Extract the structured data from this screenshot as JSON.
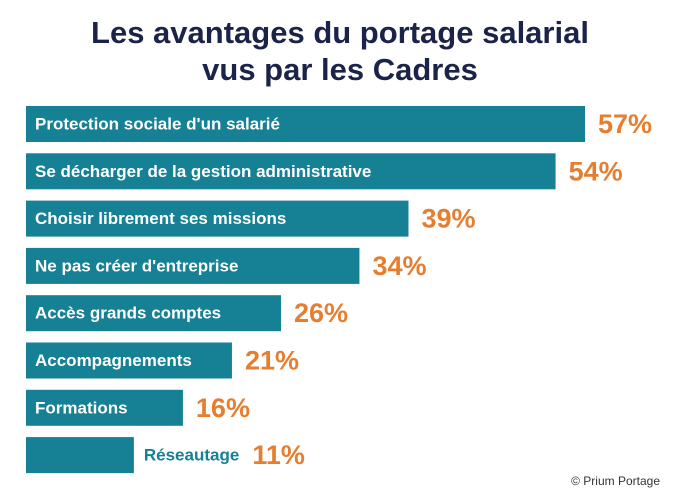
{
  "chart_data": {
    "type": "bar",
    "orientation": "horizontal",
    "title_line1": "Les avantages du portage salarial",
    "title_line2": "vus par les Cadres",
    "categories": [
      "Protection sociale d'un salarié",
      "Se décharger de la gestion administrative",
      "Choisir librement ses missions",
      "Ne pas créer d'entreprise",
      "Accès grands comptes",
      "Accompagnements",
      "Formations",
      "Réseautage"
    ],
    "values": [
      57,
      54,
      39,
      34,
      26,
      21,
      16,
      11
    ],
    "value_labels": [
      "57%",
      "54%",
      "39%",
      "34%",
      "26%",
      "21%",
      "16%",
      "11%"
    ],
    "unit": "%",
    "xlim": [
      0,
      57
    ],
    "xlabel": "",
    "ylabel": "",
    "grid": false,
    "colors": {
      "bar": "#168095",
      "bar_label_inside": "#ffffff",
      "bar_label_outside": "#168095",
      "value_label": "#e67e30",
      "title": "#1b2349"
    }
  },
  "credit": "© Prium Portage"
}
